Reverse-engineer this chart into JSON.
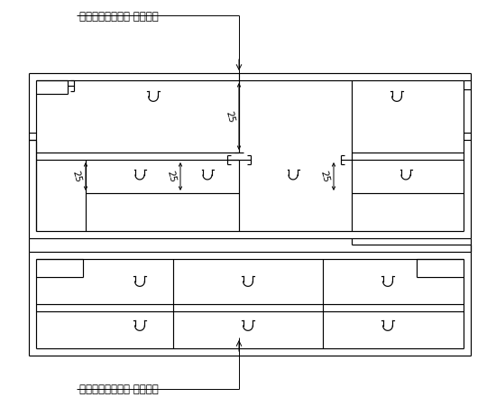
{
  "title_top": "铝合金单元下横框 氟碳喷涂",
  "title_bottom": "铝合金单元上横框 氟碳喷涂",
  "bg_color": "#ffffff",
  "line_color": "#000000"
}
